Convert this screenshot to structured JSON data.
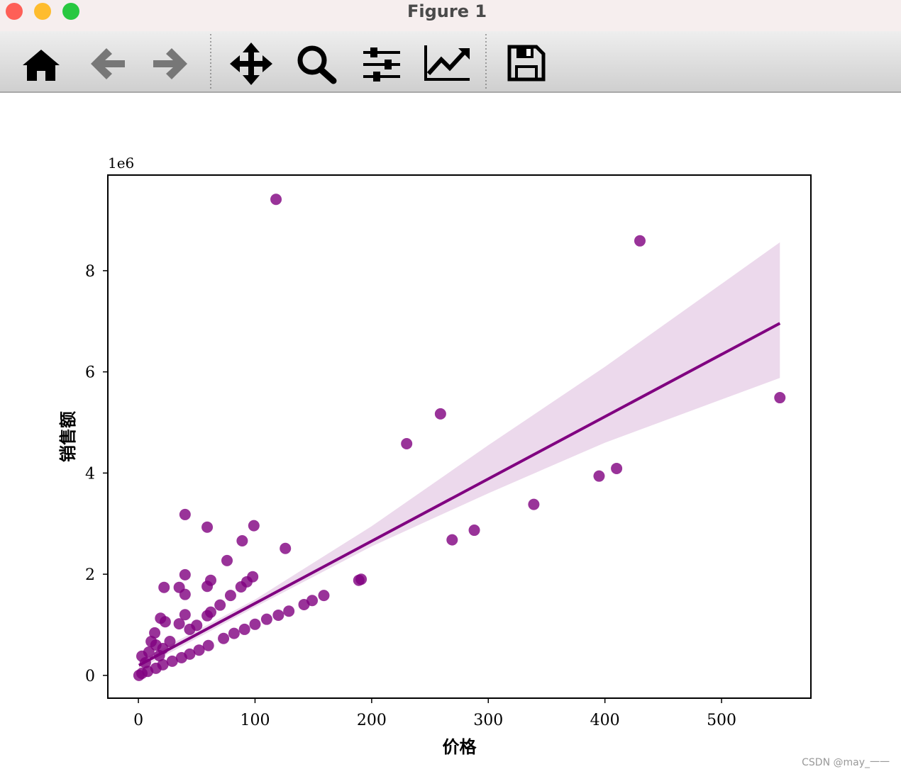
{
  "window": {
    "title": "Figure 1",
    "watermark": "CSDN @may_一一"
  },
  "chart_data": {
    "type": "scatter",
    "xlabel": "价格",
    "ylabel": "销售额",
    "y_offset_label": "1e6",
    "color": "#800080",
    "x": [
      118,
      430,
      550,
      259,
      230,
      410,
      395,
      339,
      288,
      269,
      189,
      191,
      40,
      59,
      99,
      89,
      126,
      76,
      40,
      22,
      35,
      40,
      98,
      62,
      59,
      93,
      88,
      79,
      70,
      62,
      40,
      59,
      19,
      23,
      35,
      50,
      44,
      14,
      159,
      149,
      142,
      129,
      120,
      110,
      100,
      91,
      82,
      73,
      60,
      52,
      44,
      37,
      29,
      21,
      15,
      8,
      3,
      0.5,
      3,
      9,
      15,
      11,
      6,
      18,
      27,
      21
    ],
    "values": [
      9.41,
      8.59,
      5.49,
      5.17,
      4.58,
      4.09,
      3.94,
      3.38,
      2.87,
      2.68,
      1.88,
      1.9,
      3.18,
      2.93,
      2.96,
      2.66,
      2.51,
      2.27,
      1.99,
      1.74,
      1.74,
      1.6,
      1.95,
      1.88,
      1.76,
      1.85,
      1.75,
      1.58,
      1.39,
      1.25,
      1.2,
      1.18,
      1.13,
      1.06,
      1.02,
      0.99,
      0.91,
      0.84,
      1.58,
      1.48,
      1.4,
      1.27,
      1.19,
      1.11,
      1.01,
      0.91,
      0.83,
      0.73,
      0.59,
      0.5,
      0.42,
      0.35,
      0.28,
      0.21,
      0.14,
      0.08,
      0.04,
      0.0,
      0.38,
      0.46,
      0.6,
      0.67,
      0.25,
      0.39,
      0.67,
      0.53
    ],
    "fit": {
      "x": [
        0.5,
        550
      ],
      "values": [
        0.2,
        6.96
      ]
    },
    "band": {
      "x": [
        0.5,
        100,
        200,
        300,
        400,
        550
      ],
      "upper": [
        0.28,
        1.5,
        2.95,
        4.55,
        6.1,
        8.56
      ],
      "lower": [
        0.12,
        1.35,
        2.55,
        3.6,
        4.6,
        5.88
      ]
    },
    "xlim": [
      -26.2,
      576.6
    ],
    "ylim": [
      -0.45,
      9.89
    ],
    "xticks": [
      0,
      100,
      200,
      300,
      400,
      500
    ],
    "yticks": [
      0,
      2,
      4,
      6,
      8
    ]
  }
}
